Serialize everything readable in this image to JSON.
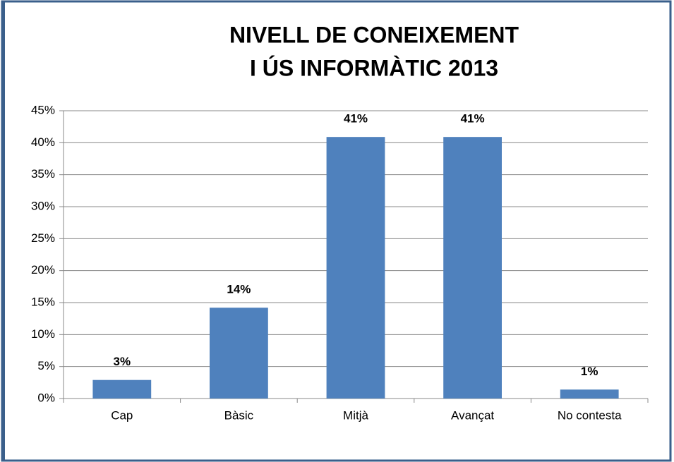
{
  "chart_data": {
    "type": "bar",
    "title": [
      "NIVELL DE CONEIXEMENT",
      "I ÚS  INFORMÀTIC 2013"
    ],
    "categories": [
      "Cap",
      "Bàsic",
      "Mitjà",
      "Avançat",
      "No contesta"
    ],
    "values": [
      2.9,
      14.2,
      40.9,
      40.9,
      1.4
    ],
    "value_labels": [
      "3%",
      "14%",
      "41%",
      "41%",
      "1%"
    ],
    "color": "#4f81bd",
    "ylim": [
      0,
      45
    ],
    "yticks": [
      {
        "value": 0,
        "label": "0%"
      },
      {
        "value": 5,
        "label": "5%"
      },
      {
        "value": 10,
        "label": "10%"
      },
      {
        "value": 15,
        "label": "15%"
      },
      {
        "value": 20,
        "label": "20%"
      },
      {
        "value": 25,
        "label": "25%"
      },
      {
        "value": 30,
        "label": "30%"
      },
      {
        "value": 35,
        "label": "35%"
      },
      {
        "value": 40,
        "label": "40%"
      },
      {
        "value": 45,
        "label": "45%"
      }
    ],
    "grid": true
  }
}
